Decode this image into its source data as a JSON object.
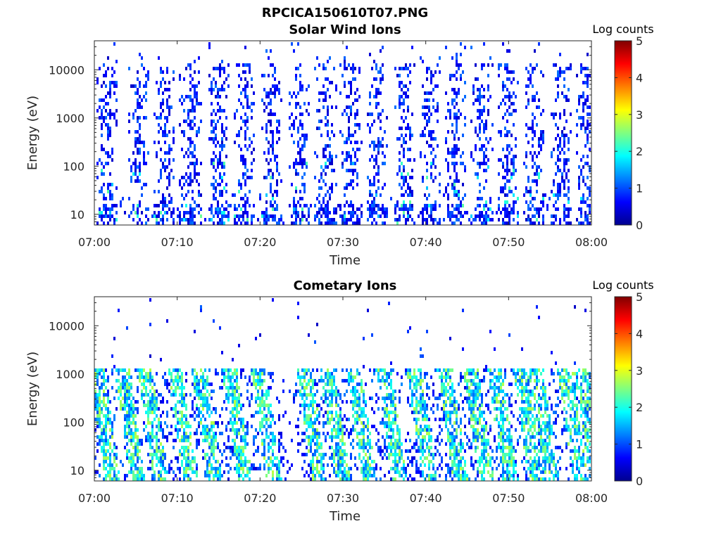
{
  "figure_title": "RPCICA150610T07.PNG",
  "chart_data": [
    {
      "type": "heatmap",
      "title": "Solar Wind Ions",
      "xlabel": "Time",
      "ylabel": "Energy (eV)",
      "x_ticks": [
        "07:00",
        "07:10",
        "07:20",
        "07:30",
        "07:40",
        "07:50",
        "08:00"
      ],
      "xlim": [
        "07:00",
        "08:00"
      ],
      "y_scale": "log",
      "y_ticks": [
        "10",
        "100",
        "1000",
        "10000"
      ],
      "ylim": [
        6,
        40000
      ],
      "colorbar_label": "Log counts",
      "colorbar_ticks": [
        "0",
        "1",
        "2",
        "3",
        "4",
        "5"
      ],
      "clim": [
        0,
        5
      ],
      "colormap": "jet",
      "sweep_minutes": [
        1.5,
        5.4,
        8.5,
        11.6,
        15.0,
        18.1,
        21.4,
        24.7,
        27.9,
        31.0,
        34.2,
        37.4,
        40.5,
        43.6,
        46.8,
        49.9,
        53.1,
        56.4,
        59.5
      ],
      "description_of_pattern": "periodic sparse vertical columns of low counts (mostly 0-1, occasional 2) spanning ~10 eV to ~20000 eV"
    },
    {
      "type": "heatmap",
      "title": "Cometary Ions",
      "xlabel": "Time",
      "ylabel": "Energy (eV)",
      "x_ticks": [
        "07:00",
        "07:10",
        "07:20",
        "07:30",
        "07:40",
        "07:50",
        "08:00"
      ],
      "xlim": [
        "07:00",
        "08:00"
      ],
      "y_scale": "log",
      "y_ticks": [
        "10",
        "100",
        "1000",
        "10000"
      ],
      "ylim": [
        6,
        40000
      ],
      "colorbar_label": "Log counts",
      "colorbar_ticks": [
        "0",
        "1",
        "2",
        "3",
        "4",
        "5"
      ],
      "clim": [
        0,
        5
      ],
      "colormap": "jet",
      "burst_minutes": [
        0.5,
        3.5,
        6.3,
        9.9,
        12.8,
        16.5,
        20.0,
        25.5,
        28.3,
        31.5,
        35.1,
        38.8,
        42.5,
        45.6,
        48.5,
        51.6,
        53.5,
        57.0,
        59.0
      ],
      "description_of_pattern": "diagonal streaks of higher counts (up to ~3) between ~10 and ~1000 eV with sparse scatter above"
    }
  ]
}
